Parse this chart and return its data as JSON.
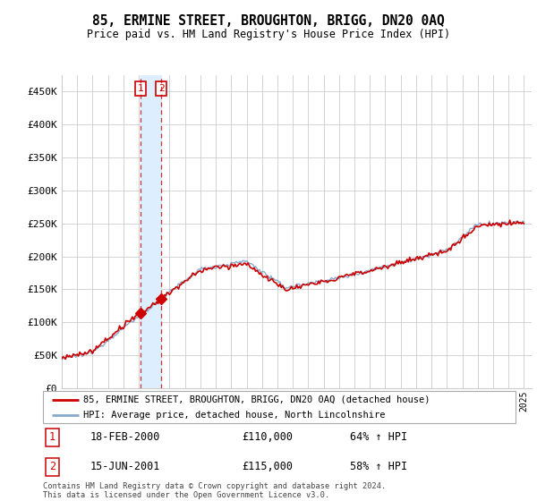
{
  "title": "85, ERMINE STREET, BROUGHTON, BRIGG, DN20 0AQ",
  "subtitle": "Price paid vs. HM Land Registry's House Price Index (HPI)",
  "legend_line1": "85, ERMINE STREET, BROUGHTON, BRIGG, DN20 0AQ (detached house)",
  "legend_line2": "HPI: Average price, detached house, North Lincolnshire",
  "footnote": "Contains HM Land Registry data © Crown copyright and database right 2024.\nThis data is licensed under the Open Government Licence v3.0.",
  "transaction1_date": "18-FEB-2000",
  "transaction1_price": "£110,000",
  "transaction1_hpi": "64% ↑ HPI",
  "transaction2_date": "15-JUN-2001",
  "transaction2_price": "£115,000",
  "transaction2_hpi": "58% ↑ HPI",
  "sale_color": "#cc0000",
  "hpi_color": "#88aacc",
  "marker_color": "#cc0000",
  "vline_color": "#cc0000",
  "box_color": "#cc0000",
  "shade_color": "#ddeeff",
  "ytick_labels": [
    "£0",
    "£50K",
    "£100K",
    "£150K",
    "£200K",
    "£250K",
    "£300K",
    "£350K",
    "£400K",
    "£450K"
  ],
  "background_color": "#ffffff",
  "grid_color": "#cccccc"
}
